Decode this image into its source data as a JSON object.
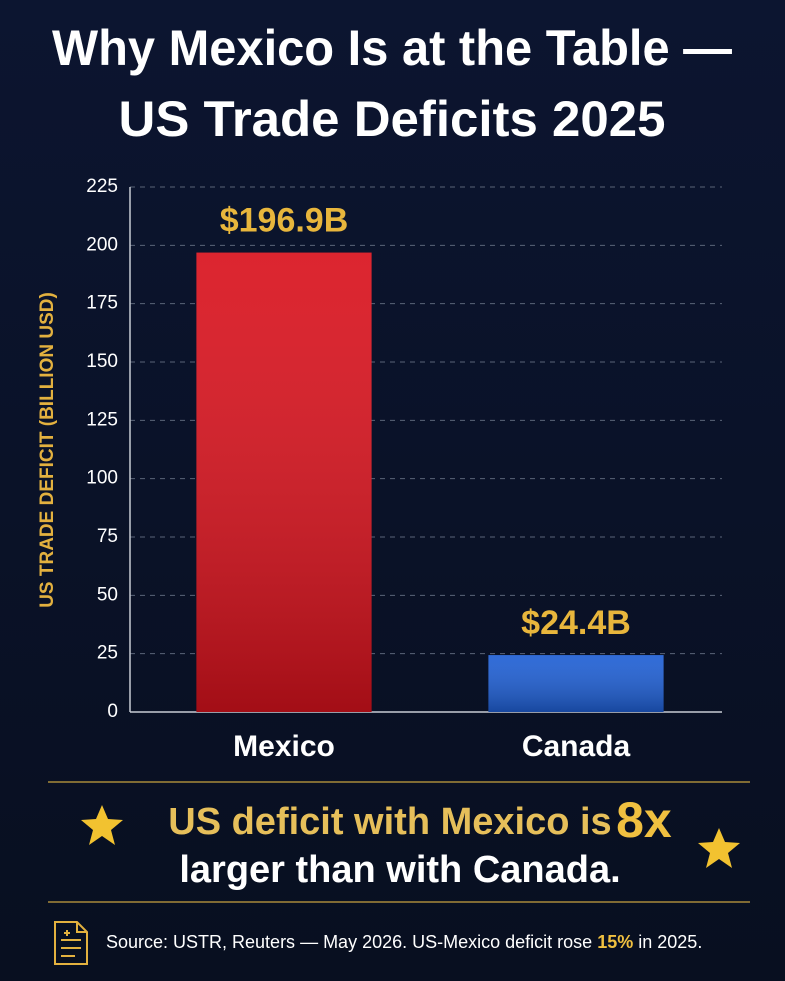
{
  "chart_data": {
    "type": "bar",
    "title_lines": [
      "Why Mexico Is at the Table —",
      "US Trade Deficits 2025"
    ],
    "y_label": "US TRADE DEFICIT (BILLION USD)",
    "categories": [
      "Mexico",
      "Canada"
    ],
    "values": [
      196.9,
      24.4
    ],
    "value_labels": [
      "$196.9B",
      "$24.4B"
    ],
    "colors": [
      "#d9121d",
      "#1f5fd4"
    ],
    "ylim": [
      0,
      225
    ],
    "yticks": [
      0,
      25,
      50,
      75,
      100,
      125,
      150,
      175,
      200,
      225
    ],
    "grid": true,
    "callout": {
      "line1": "US deficit with Mexico is",
      "highlight": "8x",
      "line2": "larger than with Canada."
    },
    "source": {
      "text": "Source: USTR, Reuters — May 2026.",
      "note_start": "US-Mexico deficit rose",
      "note_highlight": "15%",
      "note_end": "in 2025."
    }
  }
}
